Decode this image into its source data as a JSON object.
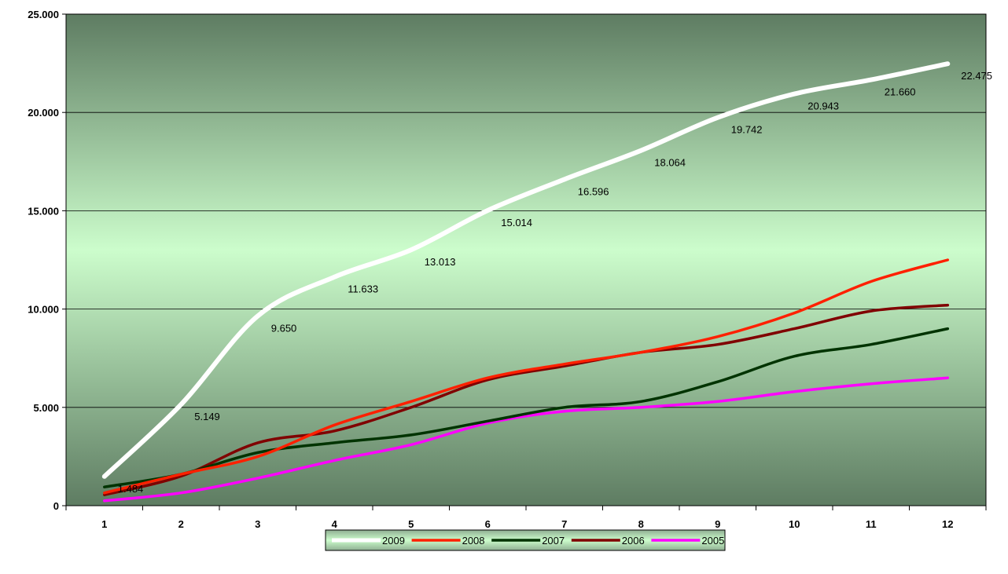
{
  "chart_data": {
    "type": "line",
    "categories": [
      "1",
      "2",
      "3",
      "4",
      "5",
      "6",
      "7",
      "8",
      "9",
      "10",
      "11",
      "12"
    ],
    "ylim": [
      0,
      25000
    ],
    "yticks": [
      {
        "value": 0,
        "label": "0"
      },
      {
        "value": 5000,
        "label": "5.000"
      },
      {
        "value": 10000,
        "label": "10.000"
      },
      {
        "value": 15000,
        "label": "15.000"
      },
      {
        "value": 20000,
        "label": "20.000"
      },
      {
        "value": 25000,
        "label": "25.000"
      }
    ],
    "grid": true,
    "legend_position": "bottom",
    "series": [
      {
        "name": "2009",
        "color": "#ffffff",
        "values": [
          1484,
          5149,
          9650,
          11633,
          13013,
          15014,
          16596,
          18064,
          19742,
          20943,
          21660,
          22475
        ],
        "data_labels": [
          "1.484",
          "5.149",
          "9.650",
          "11.633",
          "13.013",
          "15.014",
          "16.596",
          "18.064",
          "19.742",
          "20.943",
          "21.660",
          "22.475"
        ]
      },
      {
        "name": "2008",
        "color": "#ff2000",
        "values": [
          650,
          1600,
          2500,
          4100,
          5300,
          6500,
          7200,
          7800,
          8600,
          9800,
          11400,
          12500
        ]
      },
      {
        "name": "2007",
        "color": "#003300",
        "values": [
          950,
          1600,
          2700,
          3200,
          3600,
          4300,
          5000,
          5300,
          6300,
          7600,
          8200,
          9000
        ]
      },
      {
        "name": "2006",
        "color": "#800000",
        "values": [
          550,
          1500,
          3200,
          3800,
          5000,
          6400,
          7100,
          7800,
          8200,
          9000,
          9900,
          10200
        ]
      },
      {
        "name": "2005",
        "color": "#ff00ff",
        "values": [
          250,
          650,
          1400,
          2300,
          3100,
          4200,
          4800,
          5000,
          5300,
          5800,
          6200,
          6500
        ]
      }
    ]
  }
}
